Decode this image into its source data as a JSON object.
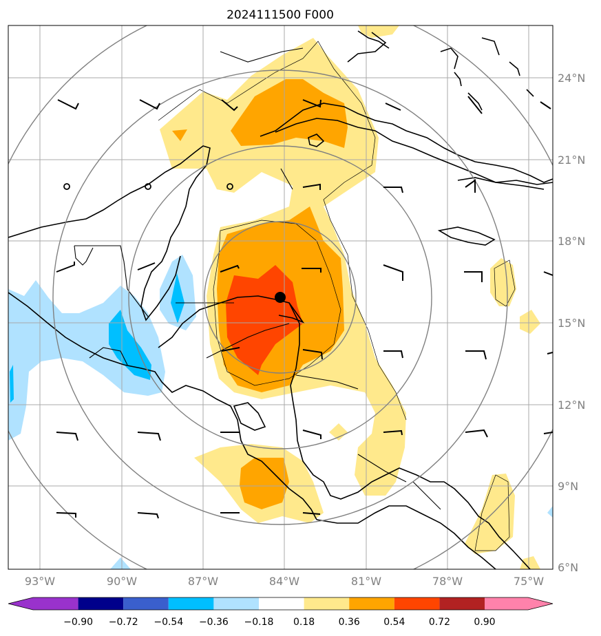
{
  "title": "2024111500 F000",
  "colors": {
    "neg_090": "#9932cc",
    "neg_072": "#00008b",
    "neg_054": "#3a5fcd",
    "neg_036": "#00bfff",
    "neg_018": "#b0e2ff",
    "zero": "#ffffff",
    "pos_018": "#ffe98c",
    "pos_036": "#ffa500",
    "pos_054": "#ff4500",
    "pos_072": "#b22222",
    "pos_090": "#ff82ab"
  },
  "x_ticks": [
    "93°W",
    "90°W",
    "87°W",
    "84°W",
    "81°W",
    "78°W",
    "75°W"
  ],
  "y_ticks": [
    "24°N",
    "21°N",
    "18°N",
    "15°N",
    "12°N",
    "9°N",
    "6°N"
  ],
  "colorbar_ticks": [
    "−0.90",
    "−0.72",
    "−0.54",
    "−0.36",
    "−0.18",
    "0.18",
    "0.36",
    "0.54",
    "0.72",
    "0.90"
  ],
  "storm_center": {
    "lon": -84.0,
    "lat": 16.0
  }
}
